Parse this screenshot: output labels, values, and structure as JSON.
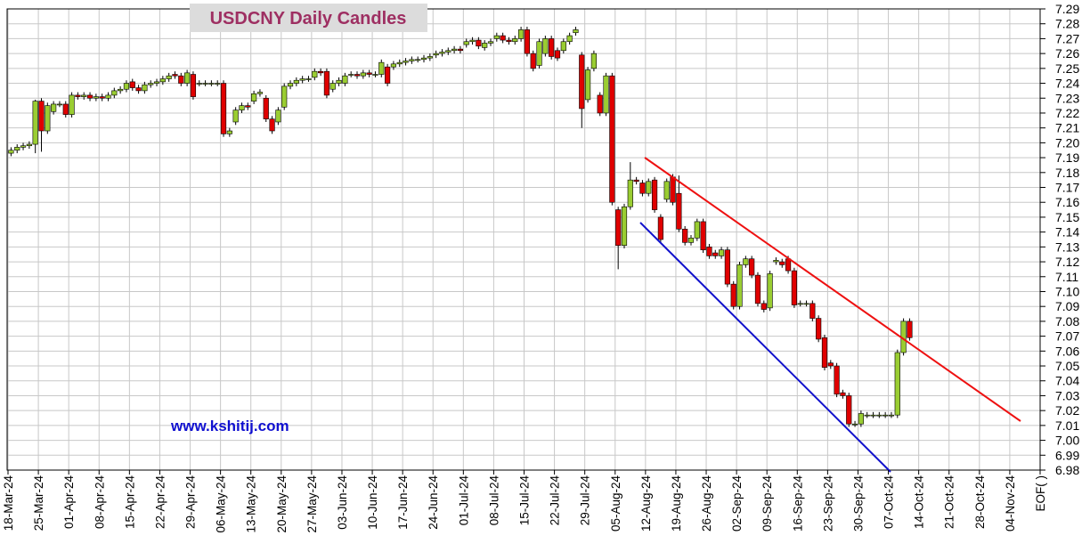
{
  "chart_data": {
    "type": "candlestick",
    "title": "USDCNY Daily Candles",
    "watermark": "www.kshitij.com",
    "ylim": [
      6.98,
      7.29
    ],
    "yticks": [
      6.98,
      6.99,
      {
        "value": 7,
        "label": "7.00"
      },
      7.01,
      7.02,
      7.03,
      7.04,
      7.05,
      7.06,
      7.07,
      7.08,
      7.09,
      {
        "value": 7.1,
        "label": "7.10"
      },
      7.11,
      7.12,
      7.13,
      7.14,
      7.15,
      7.16,
      7.17,
      7.18,
      7.19,
      {
        "value": 7.2,
        "label": "7.20"
      },
      7.21,
      7.22,
      7.23,
      7.24,
      7.25,
      7.26,
      7.27,
      7.28,
      7.29
    ],
    "x_labels": [
      "18-Mar-24",
      "25-Mar-24",
      "01-Apr-24",
      "08-Apr-24",
      "15-Apr-24",
      "22-Apr-24",
      "29-Apr-24",
      "06-May-24",
      "13-May-24",
      "20-May-24",
      "27-May-24",
      "03-Jun-24",
      "10-Jun-24",
      "17-Jun-24",
      "24-Jun-24",
      "01-Jul-24",
      "08-Jul-24",
      "15-Jul-24",
      "22-Jul-24",
      "29-Jul-24",
      "05-Aug-24",
      "12-Aug-24",
      "19-Aug-24",
      "26-Aug-24",
      "02-Sep-24",
      "09-Sep-24",
      "16-Sep-24",
      "23-Sep-24",
      "30-Sep-24",
      "07-Oct-24",
      "14-Oct-24",
      "21-Oct-24",
      "28-Oct-24",
      "04-Nov-24",
      "EOF( )"
    ],
    "grid": true,
    "up_color": "#9acd32",
    "down_color": "#e00000",
    "open": [
      7.193,
      7.195,
      7.197,
      7.198,
      7.199,
      7.228,
      7.208,
      7.221,
      7.226,
      7.226,
      7.219,
      7.232,
      7.231,
      7.232,
      7.23,
      7.231,
      7.23,
      7.232,
      7.235,
      7.236,
      7.241,
      7.237,
      7.235,
      7.239,
      7.24,
      7.241,
      7.243,
      7.246,
      7.245,
      7.24,
      7.246,
      7.24,
      7.24,
      7.24,
      7.24,
      7.24,
      7.206,
      7.214,
      7.222,
      7.225,
      7.228,
      7.233,
      7.23,
      7.216,
      7.214,
      7.224,
      7.238,
      7.24,
      7.242,
      7.243,
      7.244,
      7.248,
      7.248,
      7.236,
      7.24,
      7.24,
      7.246,
      7.246,
      7.245,
      7.247,
      7.246,
      7.246,
      7.251,
      7.251,
      7.253,
      7.254,
      7.255,
      7.256,
      7.256,
      7.257,
      7.259,
      7.26,
      7.261,
      7.262,
      7.263,
      7.266,
      7.268,
      7.269,
      7.264,
      7.267,
      7.27,
      7.272,
      7.269,
      7.268,
      7.27,
      7.276,
      7.26,
      7.252,
      7.26,
      7.27,
      7.262,
      7.262,
      7.268,
      7.274,
      7.259,
      7.229,
      7.25,
      7.232,
      7.22,
      7.245,
      7.155,
      7.131,
      7.157,
      7.175,
      7.173,
      7.166,
      7.175,
      7.15,
      7.162,
      7.177,
      7.166,
      7.142,
      7.133,
      7.136,
      7.147,
      7.13,
      7.126,
      7.124,
      7.128,
      7.105,
      7.09,
      7.118,
      7.122,
      7.111,
      7.092,
      7.089,
      7.12,
      7.12,
      7.122,
      7.114,
      7.092,
      7.092,
      7.092,
      7.082,
      7.069,
      7.052,
      7.05,
      7.032,
      7.03,
      7.011,
      7.011,
      7.017,
      7.017,
      7.017,
      7.017,
      7.017,
      7.017,
      7.059,
      7.08
    ],
    "high": [
      7.197,
      7.199,
      7.2,
      7.201,
      7.229,
      7.23,
      7.227,
      7.228,
      7.228,
      7.228,
      7.234,
      7.234,
      7.234,
      7.234,
      7.233,
      7.233,
      7.234,
      7.237,
      7.238,
      7.242,
      7.243,
      7.239,
      7.241,
      7.242,
      7.243,
      7.245,
      7.247,
      7.248,
      7.247,
      7.249,
      7.248,
      7.242,
      7.242,
      7.242,
      7.242,
      7.242,
      7.21,
      7.224,
      7.227,
      7.227,
      7.235,
      7.236,
      7.232,
      7.218,
      7.224,
      7.24,
      7.242,
      7.244,
      7.245,
      7.245,
      7.25,
      7.25,
      7.25,
      7.242,
      7.244,
      7.247,
      7.248,
      7.248,
      7.249,
      7.249,
      7.248,
      7.256,
      7.253,
      7.255,
      7.256,
      7.257,
      7.258,
      7.258,
      7.259,
      7.26,
      7.262,
      7.263,
      7.264,
      7.265,
      7.265,
      7.27,
      7.271,
      7.271,
      7.269,
      7.27,
      7.274,
      7.274,
      7.271,
      7.272,
      7.278,
      7.278,
      7.262,
      7.27,
      7.272,
      7.272,
      7.264,
      7.27,
      7.274,
      7.278,
      7.261,
      7.251,
      7.262,
      7.234,
      7.247,
      7.247,
      7.157,
      7.159,
      7.187,
      7.177,
      7.175,
      7.176,
      7.177,
      7.152,
      7.176,
      7.179,
      7.178,
      7.144,
      7.138,
      7.149,
      7.149,
      7.132,
      7.128,
      7.13,
      7.13,
      7.107,
      7.12,
      7.124,
      7.124,
      7.113,
      7.094,
      7.114,
      7.123,
      7.122,
      7.124,
      7.116,
      7.094,
      7.094,
      7.094,
      7.084,
      7.071,
      7.054,
      7.052,
      7.034,
      7.032,
      7.013,
      7.02,
      7.019,
      7.019,
      7.019,
      7.019,
      7.019,
      7.061,
      7.082,
      7.082
    ],
    "low": [
      7.191,
      7.193,
      7.195,
      7.196,
      7.193,
      7.194,
      7.206,
      7.219,
      7.224,
      7.217,
      7.217,
      7.229,
      7.229,
      7.228,
      7.228,
      7.228,
      7.228,
      7.23,
      7.233,
      7.234,
      7.235,
      7.233,
      7.233,
      7.237,
      7.238,
      7.239,
      7.241,
      7.243,
      7.238,
      7.238,
      7.229,
      7.238,
      7.238,
      7.238,
      7.238,
      7.204,
      7.204,
      7.212,
      7.22,
      7.222,
      7.226,
      7.231,
      7.214,
      7.206,
      7.212,
      7.222,
      7.236,
      7.238,
      7.24,
      7.241,
      7.242,
      7.245,
      7.23,
      7.234,
      7.238,
      7.238,
      7.244,
      7.243,
      7.243,
      7.244,
      7.244,
      7.244,
      7.238,
      7.249,
      7.251,
      7.252,
      7.253,
      7.254,
      7.254,
      7.255,
      7.257,
      7.258,
      7.259,
      7.26,
      7.26,
      7.264,
      7.266,
      7.263,
      7.262,
      7.265,
      7.268,
      7.267,
      7.266,
      7.266,
      7.268,
      7.258,
      7.248,
      7.25,
      7.258,
      7.256,
      7.255,
      7.26,
      7.266,
      7.272,
      7.21,
      7.227,
      7.248,
      7.218,
      7.218,
      7.158,
      7.115,
      7.129,
      7.155,
      7.172,
      7.164,
      7.164,
      7.153,
      7.133,
      7.16,
      7.158,
      7.14,
      7.131,
      7.131,
      7.134,
      7.126,
      7.122,
      7.122,
      7.122,
      7.103,
      7.088,
      7.088,
      7.116,
      7.109,
      7.09,
      7.086,
      7.087,
      7.118,
      7.116,
      7.112,
      7.089,
      7.09,
      7.09,
      7.08,
      7.066,
      7.047,
      7.048,
      7.029,
      7.028,
      7.009,
      7.009,
      7.009,
      7.015,
      7.015,
      7.015,
      7.015,
      7.015,
      7.015,
      7.057,
      7.067
    ],
    "close": [
      7.195,
      7.197,
      7.198,
      7.199,
      7.228,
      7.208,
      7.225,
      7.226,
      7.226,
      7.219,
      7.232,
      7.231,
      7.232,
      7.23,
      7.231,
      7.23,
      7.232,
      7.235,
      7.236,
      7.24,
      7.237,
      7.235,
      7.239,
      7.24,
      7.241,
      7.243,
      7.245,
      7.245,
      7.24,
      7.247,
      7.231,
      7.24,
      7.24,
      7.24,
      7.24,
      7.206,
      7.208,
      7.222,
      7.225,
      7.224,
      7.233,
      7.234,
      7.216,
      7.208,
      7.222,
      7.238,
      7.24,
      7.242,
      7.243,
      7.243,
      7.248,
      7.247,
      7.232,
      7.24,
      7.242,
      7.245,
      7.246,
      7.245,
      7.247,
      7.246,
      7.246,
      7.254,
      7.24,
      7.253,
      7.254,
      7.255,
      7.256,
      7.256,
      7.257,
      7.258,
      7.26,
      7.261,
      7.262,
      7.263,
      7.262,
      7.268,
      7.269,
      7.265,
      7.267,
      7.268,
      7.272,
      7.269,
      7.268,
      7.27,
      7.276,
      7.26,
      7.25,
      7.268,
      7.27,
      7.258,
      7.257,
      7.268,
      7.272,
      7.276,
      7.223,
      7.249,
      7.26,
      7.22,
      7.245,
      7.16,
      7.131,
      7.157,
      7.175,
      7.174,
      7.166,
      7.174,
      7.155,
      7.135,
      7.174,
      7.16,
      7.142,
      7.133,
      7.136,
      7.147,
      7.128,
      7.124,
      7.124,
      7.128,
      7.105,
      7.09,
      7.118,
      7.122,
      7.111,
      7.092,
      7.088,
      7.112,
      7.121,
      7.118,
      7.114,
      7.091,
      7.092,
      7.092,
      7.082,
      7.068,
      7.049,
      7.05,
      7.031,
      7.03,
      7.011,
      7.011,
      7.018,
      7.017,
      7.017,
      7.017,
      7.017,
      7.017,
      7.059,
      7.08,
      7.069
    ]
  }
}
